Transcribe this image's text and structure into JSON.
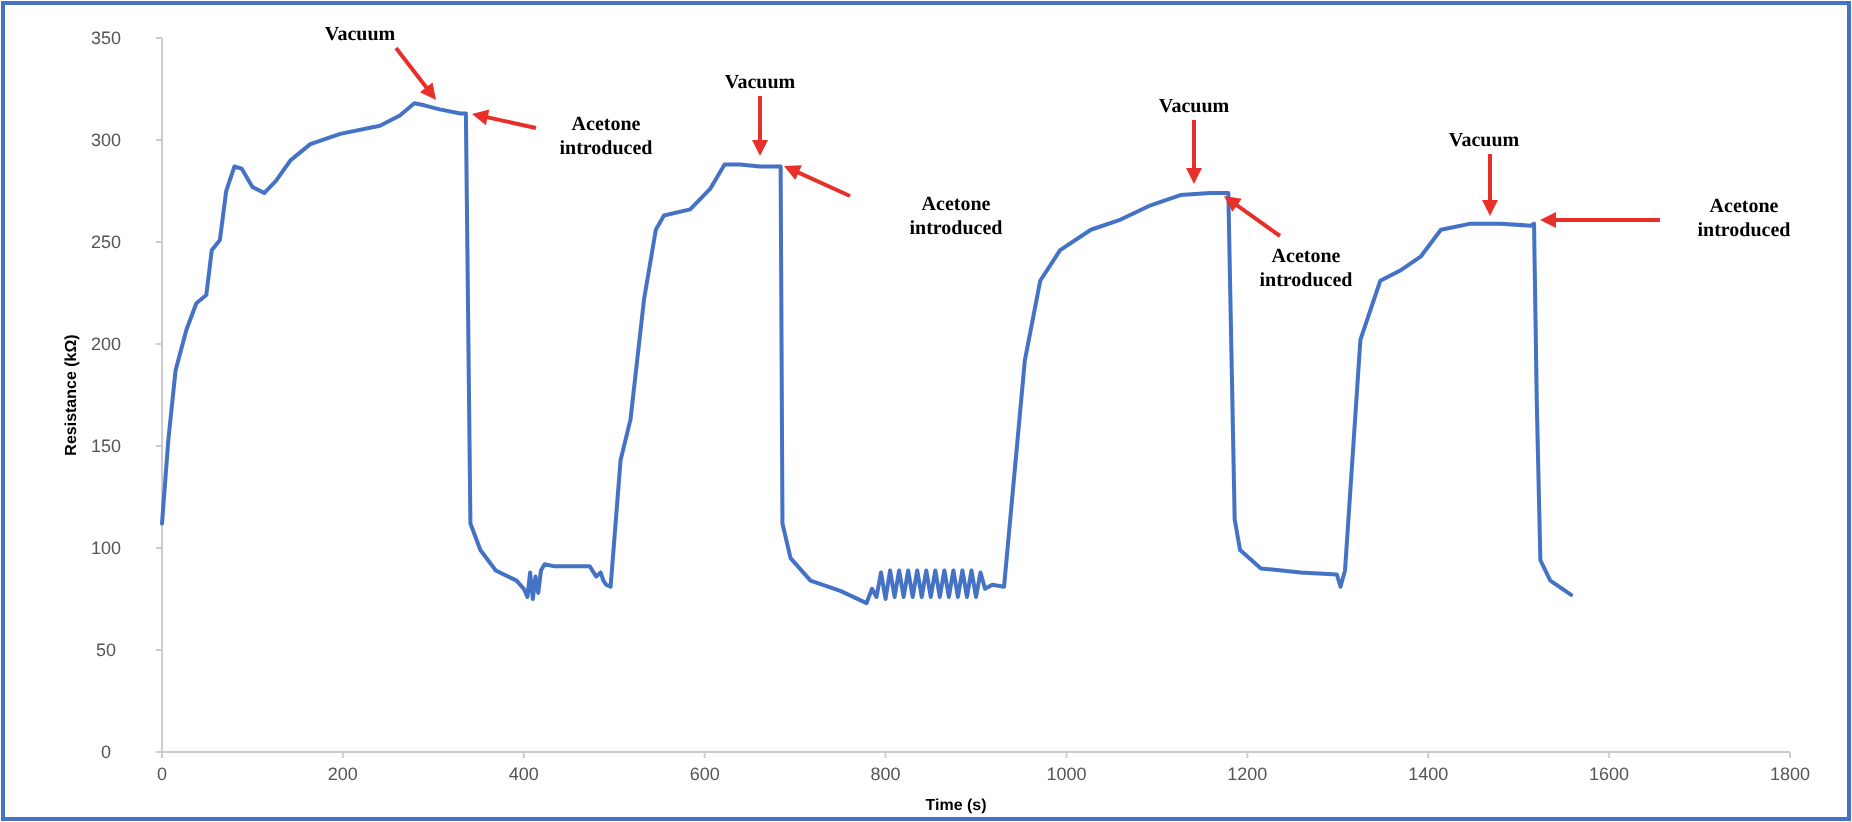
{
  "chart_data": {
    "type": "line",
    "xlabel": "Time (s)",
    "ylabel": "Resistance (kΩ)",
    "xlim": [
      0,
      1800
    ],
    "xticks": [
      0,
      200,
      400,
      600,
      800,
      1000,
      1200,
      1400,
      1600,
      1800
    ],
    "ylim": [
      0,
      350
    ],
    "yticks": [
      0,
      50,
      100,
      150,
      200,
      250,
      300,
      350
    ],
    "grid": false,
    "legend": false,
    "marker": "none",
    "line_style": "solid",
    "series": [
      {
        "color": "#4472c4",
        "x": [
          0,
          7,
          15,
          27,
          38,
          49,
          55,
          64,
          71,
          80,
          88,
          100,
          113,
          126,
          142,
          164,
          197,
          241,
          263,
          279,
          290,
          307,
          330,
          336,
          341,
          352,
          369,
          392,
          400,
          404,
          407,
          410,
          413,
          416,
          419,
          423,
          434,
          473,
          480,
          485,
          488,
          491,
          496,
          507,
          518,
          533,
          546,
          555,
          584,
          606,
          622,
          639,
          661,
          684,
          686,
          695,
          717,
          750,
          779,
          785,
          790,
          795,
          800,
          805,
          810,
          815,
          820,
          825,
          830,
          835,
          840,
          845,
          850,
          855,
          860,
          865,
          870,
          875,
          880,
          885,
          890,
          895,
          900,
          905,
          910,
          918,
          931,
          954,
          971,
          993,
          1027,
          1060,
          1093,
          1126,
          1159,
          1179,
          1186,
          1192,
          1215,
          1259,
          1299,
          1303,
          1308,
          1325,
          1347,
          1369,
          1392,
          1414,
          1447,
          1480,
          1513,
          1517,
          1520,
          1524,
          1535,
          1558
        ],
        "values": [
          112,
          153,
          187,
          207,
          220,
          224,
          246,
          251,
          275,
          287,
          286,
          277,
          274,
          280,
          290,
          298,
          303,
          307,
          312,
          318,
          317,
          315,
          313,
          313,
          112,
          99,
          89,
          84,
          80,
          76,
          88,
          75,
          86,
          78,
          89,
          92,
          91,
          91,
          86,
          88,
          84,
          82,
          81,
          143,
          163,
          222,
          256,
          263,
          266,
          276,
          288,
          288,
          287,
          287,
          112,
          95,
          84,
          79,
          73,
          80,
          76,
          88,
          75,
          89,
          76,
          89,
          76,
          89,
          76,
          89,
          76,
          89,
          76,
          89,
          76,
          89,
          76,
          89,
          76,
          89,
          76,
          89,
          76,
          88,
          80,
          82,
          81,
          192,
          231,
          246,
          256,
          261,
          268,
          273,
          274,
          274,
          114,
          99,
          90,
          88,
          87,
          81,
          89,
          202,
          231,
          236,
          243,
          256,
          259,
          259,
          258,
          259,
          172,
          94,
          84,
          77
        ]
      }
    ],
    "annotations": [
      "Vacuum",
      "Acetone introduced",
      "Vacuum",
      "Acetone introduced",
      "Vacuum",
      "Acetone introduced",
      "Vacuum",
      "Acetone introduced"
    ]
  }
}
